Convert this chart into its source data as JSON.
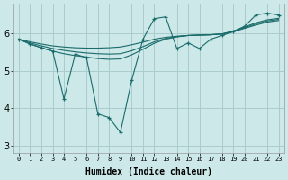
{
  "xlabel": "Humidex (Indice chaleur)",
  "background_color": "#cce8e8",
  "grid_color": "#aacccc",
  "line_color": "#1a6b6b",
  "xlim": [
    -0.5,
    23.5
  ],
  "ylim": [
    2.8,
    6.8
  ],
  "yticks": [
    3,
    4,
    5,
    6
  ],
  "xtick_labels": [
    "0",
    "1",
    "2",
    "3",
    "4",
    "5",
    "6",
    "7",
    "8",
    "9",
    "10",
    "11",
    "12",
    "13",
    "14",
    "15",
    "16",
    "17",
    "18",
    "19",
    "20",
    "21",
    "22",
    "23"
  ],
  "trend1_x": [
    0,
    1,
    2,
    3,
    4,
    5,
    6,
    7,
    8,
    9,
    10,
    11,
    12,
    13,
    14,
    15,
    16,
    17,
    18,
    19,
    20,
    21,
    22,
    23
  ],
  "trend1_y": [
    5.85,
    5.78,
    5.72,
    5.67,
    5.64,
    5.62,
    5.61,
    5.61,
    5.62,
    5.64,
    5.7,
    5.77,
    5.85,
    5.9,
    5.93,
    5.95,
    5.96,
    5.97,
    5.99,
    6.05,
    6.14,
    6.23,
    6.31,
    6.35
  ],
  "trend2_x": [
    0,
    1,
    2,
    3,
    4,
    5,
    6,
    7,
    8,
    9,
    10,
    11,
    12,
    13,
    14,
    15,
    16,
    17,
    18,
    19,
    20,
    21,
    22,
    23
  ],
  "trend2_y": [
    5.85,
    5.75,
    5.67,
    5.6,
    5.55,
    5.51,
    5.48,
    5.46,
    5.45,
    5.46,
    5.54,
    5.65,
    5.78,
    5.87,
    5.92,
    5.95,
    5.96,
    5.97,
    5.99,
    6.06,
    6.16,
    6.26,
    6.34,
    6.38
  ],
  "trend3_x": [
    0,
    1,
    2,
    3,
    4,
    5,
    6,
    7,
    8,
    9,
    10,
    11,
    12,
    13,
    14,
    15,
    16,
    17,
    18,
    19,
    20,
    21,
    22,
    23
  ],
  "trend3_y": [
    5.85,
    5.72,
    5.62,
    5.53,
    5.46,
    5.41,
    5.37,
    5.33,
    5.31,
    5.32,
    5.43,
    5.58,
    5.74,
    5.85,
    5.91,
    5.95,
    5.96,
    5.97,
    5.99,
    6.07,
    6.18,
    6.29,
    6.37,
    6.41
  ],
  "jagged_x": [
    0,
    1,
    2,
    3,
    4,
    5,
    6,
    7,
    8,
    9,
    10,
    11,
    12,
    13,
    14,
    15,
    16,
    17,
    18,
    19,
    20,
    21,
    22,
    23
  ],
  "jagged_y": [
    5.85,
    5.72,
    5.62,
    5.53,
    4.25,
    5.45,
    5.35,
    3.85,
    3.75,
    3.35,
    4.75,
    5.85,
    6.4,
    6.45,
    5.6,
    5.75,
    5.6,
    5.85,
    5.95,
    6.05,
    6.2,
    6.5,
    6.55,
    6.5
  ]
}
